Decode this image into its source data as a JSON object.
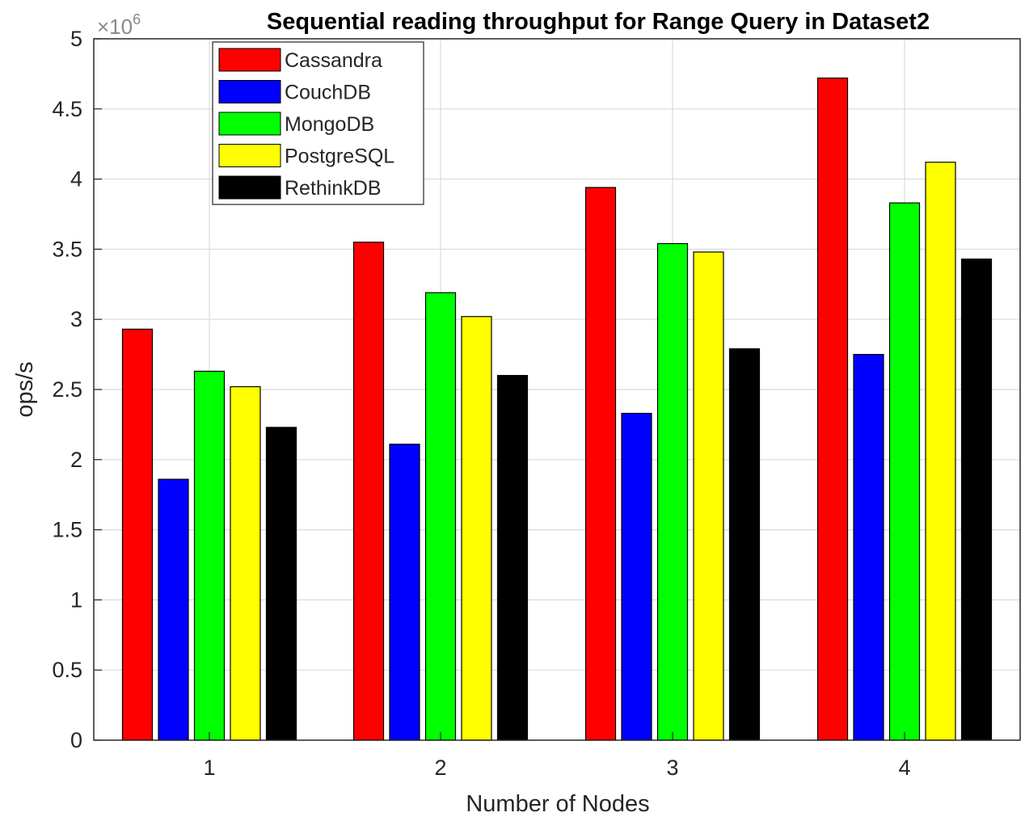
{
  "chart_data": {
    "type": "bar",
    "title": "Sequential reading throughput for Range Query in Dataset2",
    "xlabel": "Number of Nodes",
    "ylabel": "ops/s",
    "y_exponent_base": "×10",
    "y_exponent_power": "6",
    "categories": [
      "1",
      "2",
      "3",
      "4"
    ],
    "ylim": [
      0,
      5
    ],
    "yticks": [
      "0",
      "0.5",
      "1",
      "1.5",
      "2",
      "2.5",
      "3",
      "3.5",
      "4",
      "4.5",
      "5"
    ],
    "grid": true,
    "legend_position": "top-left",
    "series": [
      {
        "name": "Cassandra",
        "color": "#ff0000",
        "values": [
          2.93,
          3.55,
          3.94,
          4.72
        ]
      },
      {
        "name": "CouchDB",
        "color": "#0000ff",
        "values": [
          1.86,
          2.11,
          2.33,
          2.75
        ]
      },
      {
        "name": "MongoDB",
        "color": "#00ff00",
        "values": [
          2.63,
          3.19,
          3.54,
          3.83
        ]
      },
      {
        "name": "PostgreSQL",
        "color": "#ffff00",
        "values": [
          2.52,
          3.02,
          3.48,
          4.12
        ]
      },
      {
        "name": "RethinkDB",
        "color": "#000000",
        "values": [
          2.23,
          2.6,
          2.79,
          3.43
        ]
      }
    ]
  }
}
